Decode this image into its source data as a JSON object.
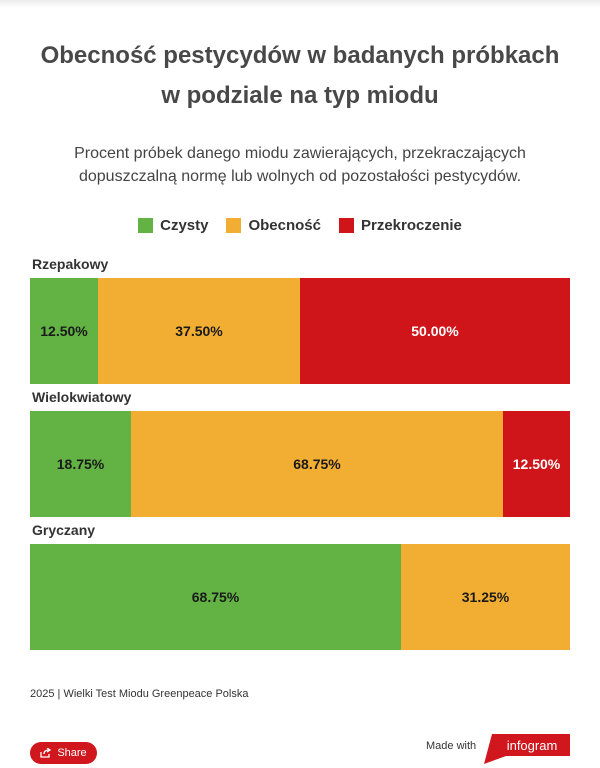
{
  "title": {
    "line1": "Obecność pestycydów w badanych próbkach",
    "line2": "w podziale na typ miodu"
  },
  "subtitle": {
    "line1": "Procent próbek danego miodu zawierających, przekraczających",
    "line2": "dopuszczalną normę lub wolnych od pozostałości pestycydów."
  },
  "colors": {
    "Czysty": "#62b244",
    "Obecność": "#f2ae33",
    "Przekroczenie": "#cf1519"
  },
  "chart_data": {
    "type": "bar",
    "orientation": "horizontal",
    "stacked": true,
    "normalized_percent": true,
    "legend_position": "top",
    "categories": [
      "Rzepakowy",
      "Wielokwiatowy",
      "Gryczany"
    ],
    "series": [
      {
        "name": "Czysty",
        "values": [
          12.5,
          18.75,
          68.75
        ],
        "labels": [
          "12.50%",
          "18.75%",
          "68.75%"
        ]
      },
      {
        "name": "Obecność",
        "values": [
          37.5,
          68.75,
          31.25
        ],
        "labels": [
          "37.50%",
          "68.75%",
          "31.25%"
        ]
      },
      {
        "name": "Przekroczenie",
        "values": [
          50.0,
          12.5,
          0
        ],
        "labels": [
          "50.00%",
          "12.50%",
          ""
        ]
      }
    ]
  },
  "footer": {
    "source": "2025 | Wielki Test Miodu Greenpeace Polska",
    "share_label": "Share",
    "made_with": "Made with",
    "brand": "infogram"
  }
}
